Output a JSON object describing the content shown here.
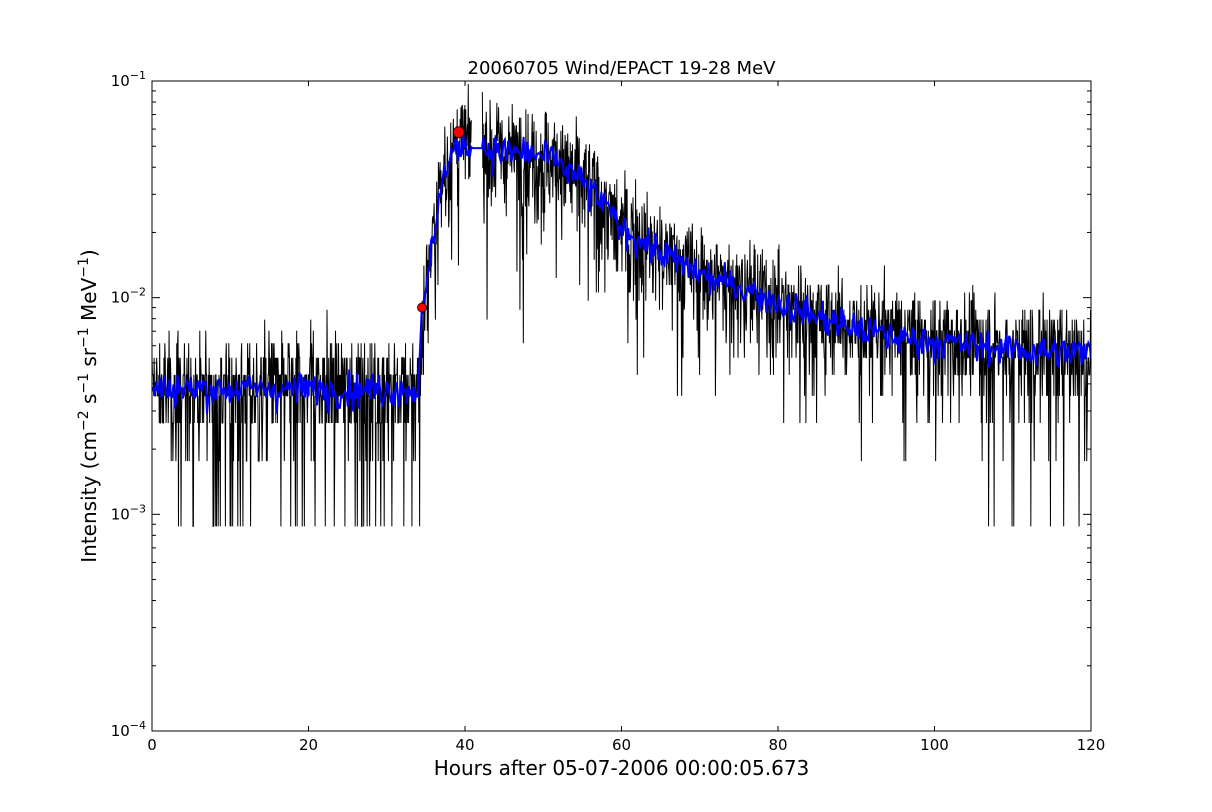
{
  "chart_data": {
    "type": "line",
    "title": "20060705 Wind/EPACT 19-28 MeV",
    "xlabel": "Hours after 05-07-2006 00:00:05.673",
    "ylabel": {
      "base": "Intensity (cm",
      "sup1": "−2",
      "mid1": " s",
      "sup2": "−1",
      "mid2": " sr",
      "sup3": "−1",
      "mid3": " MeV",
      "sup4": "−1",
      "end": ")"
    },
    "x_scale": "linear",
    "y_scale": "log",
    "xlim": [
      0,
      120
    ],
    "ylim": [
      0.0001,
      0.1
    ],
    "x_ticks": [
      {
        "value": 0,
        "label": "0"
      },
      {
        "value": 20,
        "label": "20"
      },
      {
        "value": 40,
        "label": "40"
      },
      {
        "value": 60,
        "label": "60"
      },
      {
        "value": 80,
        "label": "80"
      },
      {
        "value": 100,
        "label": "100"
      },
      {
        "value": 120,
        "label": "120"
      }
    ],
    "y_ticks": [
      {
        "value": 0.0001,
        "base": "10",
        "exp": "−4"
      },
      {
        "value": 0.001,
        "base": "10",
        "exp": "−3"
      },
      {
        "value": 0.01,
        "base": "10",
        "exp": "−2"
      },
      {
        "value": 0.1,
        "base": "10",
        "exp": "−1"
      }
    ],
    "grid": false,
    "series": [
      {
        "role": "raw intensity",
        "color": "#000000",
        "profile": [
          [
            0,
            0.0038
          ],
          [
            34.0,
            0.0038
          ],
          [
            34.5,
            0.0078
          ],
          [
            35.3,
            0.013
          ],
          [
            36.2,
            0.023
          ],
          [
            37.2,
            0.036
          ],
          [
            38.5,
            0.047
          ],
          [
            40.0,
            0.052
          ],
          [
            42.0,
            0.05
          ],
          [
            45.0,
            0.047
          ],
          [
            48.0,
            0.046
          ],
          [
            51.0,
            0.044
          ],
          [
            54.0,
            0.037
          ],
          [
            57.0,
            0.029
          ],
          [
            60.0,
            0.021
          ],
          [
            64.0,
            0.017
          ],
          [
            68.0,
            0.014
          ],
          [
            72.0,
            0.012
          ],
          [
            76.0,
            0.011
          ],
          [
            80.0,
            0.0095
          ],
          [
            85.0,
            0.0082
          ],
          [
            90.0,
            0.0072
          ],
          [
            95.0,
            0.0066
          ],
          [
            100.0,
            0.0063
          ],
          [
            105.0,
            0.006
          ],
          [
            110.0,
            0.0058
          ],
          [
            115.0,
            0.0056
          ],
          [
            120.0,
            0.0056
          ]
        ],
        "noise": "count-quantized, floor ~0.0009"
      },
      {
        "role": "smoothed intensity",
        "color": "#0000ff",
        "profile": [
          [
            0,
            0.0038
          ],
          [
            34.0,
            0.0038
          ],
          [
            34.5,
            0.0078
          ],
          [
            35.3,
            0.013
          ],
          [
            36.2,
            0.023
          ],
          [
            37.2,
            0.036
          ],
          [
            38.5,
            0.047
          ],
          [
            40.0,
            0.052
          ],
          [
            42.0,
            0.05
          ],
          [
            45.0,
            0.047
          ],
          [
            48.0,
            0.046
          ],
          [
            51.0,
            0.044
          ],
          [
            54.0,
            0.037
          ],
          [
            57.0,
            0.029
          ],
          [
            60.0,
            0.021
          ],
          [
            64.0,
            0.017
          ],
          [
            68.0,
            0.014
          ],
          [
            72.0,
            0.012
          ],
          [
            76.0,
            0.011
          ],
          [
            80.0,
            0.0095
          ],
          [
            85.0,
            0.0082
          ],
          [
            90.0,
            0.0072
          ],
          [
            95.0,
            0.0066
          ],
          [
            100.0,
            0.0063
          ],
          [
            105.0,
            0.006
          ],
          [
            110.0,
            0.0058
          ],
          [
            115.0,
            0.0056
          ],
          [
            120.0,
            0.0056
          ]
        ]
      }
    ],
    "markers": [
      {
        "role": "onset",
        "x": 34.5,
        "y": 0.009,
        "color": "#ff0000"
      },
      {
        "role": "peak",
        "x": 39.2,
        "y": 0.058,
        "color": "#ff0000"
      }
    ]
  }
}
